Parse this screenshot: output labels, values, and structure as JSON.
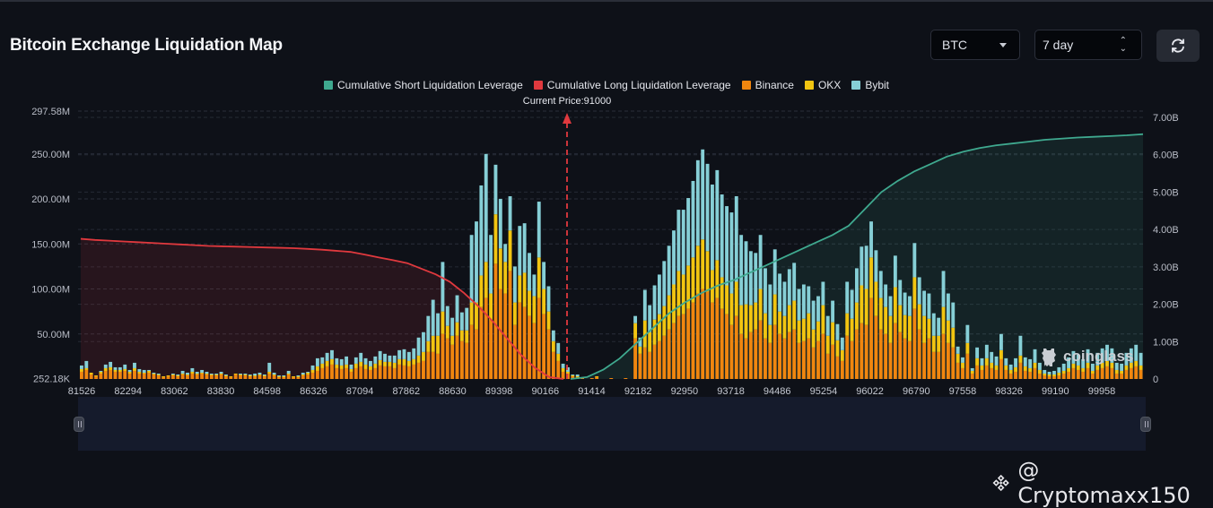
{
  "header": {
    "title": "Bitcoin Exchange Liquidation Map",
    "coin_select": "BTC",
    "range_select": "7 day",
    "refresh_icon": "refresh-icon"
  },
  "watermark": {
    "brand": "coinglass",
    "handle": "@ Cryptomaxx150",
    "icon": "binance-logo-icon"
  },
  "colors": {
    "short_cum": "#3fa98f",
    "long_cum": "#e0393e",
    "binance": "#f0860f",
    "okx": "#f2c511",
    "bybit": "#86cfd6",
    "current_price": "#e0393e"
  },
  "chart_data": {
    "type": "bar",
    "title": "Bitcoin Exchange Liquidation Map",
    "legend": [
      "Cumulative Short Liquidation Leverage",
      "Cumulative Long Liquidation Leverage",
      "Binance",
      "OKX",
      "Bybit"
    ],
    "legend_position": "top-center",
    "annotation": "Current Price:91000",
    "current_price": 91000,
    "xlabel": "",
    "ylabel_left": "",
    "ylabel_right": "",
    "x_ticks": [
      "81526",
      "82294",
      "83062",
      "83830",
      "84598",
      "86326",
      "87094",
      "87862",
      "88630",
      "89398",
      "90166",
      "91414",
      "92182",
      "92950",
      "93718",
      "94486",
      "95254",
      "96022",
      "96790",
      "97558",
      "98326",
      "99190",
      "99958"
    ],
    "y_left_ticks": [
      "252.18K",
      "50.00M",
      "100.00M",
      "150.00M",
      "200.00M",
      "250.00M",
      "297.58M"
    ],
    "y_left_range_M": [
      0,
      297.58
    ],
    "y_right_ticks": [
      "0",
      "1.00B",
      "2.00B",
      "3.00B",
      "4.00B",
      "5.00B",
      "6.00B",
      "7.00B"
    ],
    "y_right_range_B": [
      0,
      7
    ],
    "grid": true,
    "x_range": [
      81526,
      100600
    ],
    "bars_M": {
      "binance": [
        8,
        10,
        5,
        3,
        6,
        9,
        10,
        8,
        8,
        9,
        6,
        9,
        6,
        6,
        7,
        5,
        4,
        2,
        3,
        4,
        3,
        5,
        4,
        6,
        5,
        6,
        5,
        4,
        4,
        5,
        3,
        2,
        5,
        4,
        4,
        3,
        3,
        4,
        3,
        6,
        4,
        2,
        2,
        5,
        2,
        2,
        4,
        5,
        7,
        9,
        12,
        14,
        16,
        12,
        11,
        12,
        8,
        12,
        14,
        11,
        10,
        12,
        15,
        14,
        14,
        12,
        16,
        15,
        14,
        16,
        18,
        20,
        30,
        30,
        28,
        50,
        45,
        38,
        48,
        42,
        40,
        60,
        55,
        80,
        90,
        65,
        128,
        100,
        95,
        120,
        60,
        85,
        80,
        70,
        62,
        90,
        72,
        55,
        30,
        20,
        8,
        6,
        3,
        2,
        1,
        0,
        1,
        2,
        0,
        0,
        1,
        0,
        0,
        1,
        0,
        45,
        28,
        35,
        30,
        38,
        42,
        48,
        55,
        62,
        70,
        72,
        78,
        85,
        95,
        100,
        97,
        85,
        90,
        78,
        72,
        60,
        70,
        50,
        45,
        52,
        55,
        65,
        45,
        40,
        60,
        50,
        45,
        52,
        55,
        40,
        42,
        45,
        35,
        42,
        50,
        28,
        38,
        25,
        20,
        48,
        42,
        55,
        62,
        60,
        90,
        70,
        55,
        50,
        40,
        62,
        52,
        45,
        42,
        78,
        55,
        40,
        45,
        30,
        30,
        50,
        40,
        35,
        18,
        12,
        28,
        6,
        15,
        10,
        15,
        12,
        10,
        22,
        10,
        6,
        8,
        18,
        9,
        8,
        12,
        6,
        4,
        3,
        3,
        4,
        6,
        8,
        12,
        10,
        8,
        12,
        6,
        10,
        12,
        14,
        12,
        6,
        6,
        10,
        12,
        14,
        10
      ],
      "okx": [
        3,
        2,
        2,
        1,
        2,
        3,
        3,
        2,
        2,
        2,
        2,
        3,
        2,
        1,
        2,
        1,
        1,
        1,
        1,
        1,
        1,
        1,
        1,
        2,
        1,
        1,
        1,
        1,
        1,
        1,
        1,
        1,
        1,
        1,
        1,
        1,
        1,
        1,
        1,
        2,
        1,
        1,
        1,
        1,
        1,
        1,
        1,
        2,
        3,
        5,
        5,
        6,
        6,
        4,
        4,
        4,
        3,
        5,
        5,
        5,
        4,
        5,
        6,
        5,
        5,
        6,
        6,
        7,
        6,
        6,
        8,
        10,
        12,
        18,
        20,
        25,
        14,
        10,
        15,
        12,
        14,
        25,
        30,
        35,
        40,
        30,
        55,
        45,
        35,
        45,
        25,
        30,
        38,
        28,
        30,
        45,
        28,
        20,
        12,
        8,
        4,
        2,
        1,
        1,
        0,
        0,
        0,
        1,
        0,
        0,
        0,
        0,
        0,
        0,
        0,
        17,
        8,
        30,
        22,
        28,
        30,
        33,
        38,
        43,
        50,
        44,
        48,
        50,
        53,
        55,
        45,
        36,
        42,
        35,
        32,
        35,
        38,
        32,
        38,
        30,
        30,
        35,
        28,
        20,
        34,
        25,
        25,
        30,
        32,
        25,
        25,
        28,
        20,
        22,
        32,
        20,
        25,
        18,
        12,
        25,
        25,
        30,
        42,
        40,
        45,
        38,
        35,
        30,
        30,
        40,
        30,
        26,
        28,
        35,
        28,
        30,
        22,
        18,
        18,
        30,
        25,
        22,
        10,
        6,
        12,
        3,
        8,
        5,
        8,
        6,
        5,
        10,
        5,
        4,
        5,
        8,
        5,
        4,
        6,
        4,
        2,
        2,
        2,
        3,
        3,
        4,
        5,
        5,
        4,
        6,
        3,
        5,
        6,
        6,
        6,
        4,
        3,
        5,
        6,
        6,
        5
      ],
      "bybit": [
        4,
        8,
        0,
        0,
        1,
        4,
        6,
        3,
        3,
        5,
        2,
        6,
        3,
        3,
        1,
        1,
        1,
        0,
        0,
        1,
        1,
        3,
        2,
        4,
        2,
        3,
        2,
        1,
        1,
        2,
        1,
        0,
        0,
        1,
        1,
        1,
        2,
        2,
        1,
        10,
        2,
        1,
        1,
        3,
        0,
        1,
        2,
        1,
        5,
        9,
        7,
        9,
        10,
        7,
        7,
        9,
        5,
        7,
        10,
        7,
        6,
        8,
        10,
        9,
        7,
        8,
        10,
        11,
        10,
        12,
        20,
        22,
        28,
        40,
        25,
        55,
        22,
        20,
        30,
        20,
        25,
        75,
        90,
        100,
        120,
        65,
        55,
        55,
        20,
        38,
        40,
        55,
        55,
        42,
        24,
        62,
        30,
        28,
        12,
        12,
        5,
        5,
        1,
        2,
        1,
        0,
        0,
        0,
        0,
        0,
        0,
        0,
        0,
        0,
        0,
        8,
        10,
        34,
        30,
        38,
        44,
        50,
        55,
        60,
        68,
        72,
        75,
        85,
        95,
        100,
        97,
        95,
        100,
        92,
        88,
        90,
        95,
        78,
        70,
        60,
        55,
        60,
        50,
        45,
        50,
        42,
        38,
        40,
        42,
        35,
        38,
        30,
        32,
        28,
        26,
        22,
        24,
        18,
        14,
        35,
        32,
        38,
        43,
        48,
        40,
        35,
        30,
        25,
        22,
        35,
        28,
        25,
        22,
        38,
        30,
        28,
        28,
        25,
        20,
        40,
        30,
        28,
        8,
        6,
        20,
        3,
        12,
        8,
        15,
        12,
        10,
        18,
        8,
        6,
        10,
        22,
        10,
        10,
        15,
        8,
        4,
        3,
        4,
        6,
        8,
        12,
        14,
        12,
        10,
        15,
        8,
        14,
        16,
        18,
        16,
        8,
        8,
        14,
        16,
        18,
        14
      ]
    },
    "cumulative_long_B": [
      3.75,
      3.72,
      3.7,
      3.68,
      3.66,
      3.64,
      3.62,
      3.6,
      3.58,
      3.56,
      3.55,
      3.54,
      3.53,
      3.52,
      3.51,
      3.5,
      3.48,
      3.46,
      3.43,
      3.4,
      3.33,
      3.25,
      3.18,
      3.1,
      2.95,
      2.8,
      2.6,
      2.3,
      1.95,
      1.55,
      1.1,
      0.65,
      0.3,
      0.05,
      0.0
    ],
    "cumulative_short_B": [
      0.0,
      0.05,
      0.25,
      0.55,
      0.95,
      1.35,
      1.75,
      2.05,
      2.3,
      2.5,
      2.65,
      2.85,
      3.05,
      3.25,
      3.45,
      3.65,
      3.85,
      4.1,
      4.55,
      5.0,
      5.3,
      5.55,
      5.75,
      5.95,
      6.08,
      6.18,
      6.25,
      6.3,
      6.35,
      6.4,
      6.43,
      6.46,
      6.48,
      6.5,
      6.52,
      6.55
    ]
  }
}
